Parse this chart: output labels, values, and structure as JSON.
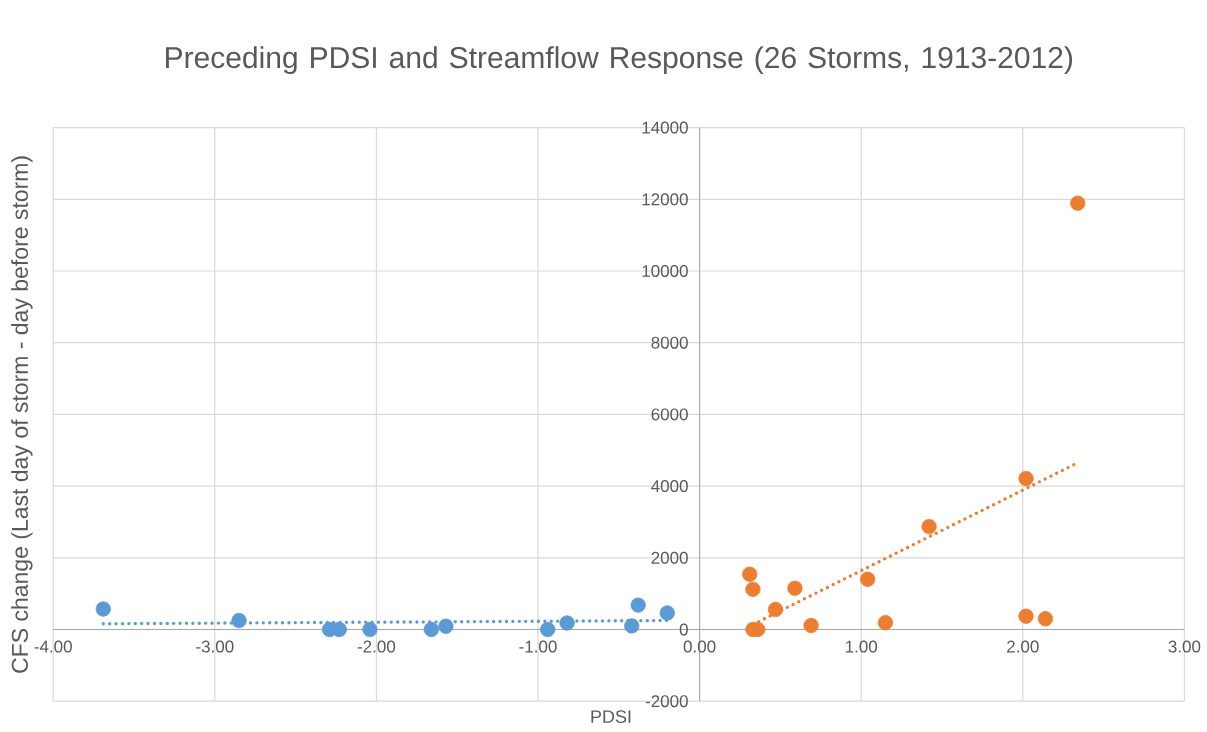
{
  "chart_data": {
    "type": "scatter",
    "title": "Preceding PDSI and Streamflow Response (26 Storms, 1913-2012)",
    "xlabel": "PDSI",
    "ylabel": "CFS change (Last day of storm - day before storm)",
    "xlim": [
      -4,
      3
    ],
    "ylim": [
      -2000,
      14000
    ],
    "xticks": [
      {
        "value": -4,
        "label": "-4.00"
      },
      {
        "value": -3,
        "label": "-3.00"
      },
      {
        "value": -2,
        "label": "-2.00"
      },
      {
        "value": -1,
        "label": "-1.00"
      },
      {
        "value": 0,
        "label": "0.00"
      },
      {
        "value": 1,
        "label": "1.00"
      },
      {
        "value": 2,
        "label": "2.00"
      },
      {
        "value": 3,
        "label": "3.00"
      }
    ],
    "yticks": [
      -2000,
      0,
      2000,
      4000,
      6000,
      8000,
      10000,
      12000,
      14000
    ],
    "grid": true,
    "marker": "circle",
    "series": [
      {
        "color": "#5b9bd5",
        "x": [
          -3.69,
          -2.85,
          -2.29,
          -2.23,
          -2.04,
          -1.66,
          -1.57,
          -0.94,
          -0.82,
          -0.42,
          -0.38,
          -0.2
        ],
        "values": [
          570,
          250,
          0,
          0,
          0,
          0,
          90,
          0,
          180,
          100,
          680,
          460
        ]
      },
      {
        "color": "#ed7d31",
        "x": [
          0.31,
          0.33,
          0.33,
          0.36,
          0.47,
          0.59,
          0.69,
          1.04,
          1.15,
          1.42,
          2.02,
          2.02,
          2.14,
          2.34
        ],
        "values": [
          1540,
          1120,
          0,
          0,
          560,
          1150,
          110,
          1400,
          190,
          2870,
          4210,
          370,
          300,
          11890
        ]
      },
      {
        "type": "line",
        "color": "#5b9bd5",
        "line_style": "dotted",
        "marker": "none",
        "x": [
          -3.69,
          -0.2
        ],
        "values": [
          160,
          250
        ]
      },
      {
        "type": "line",
        "color": "#ed7d31",
        "line_style": "dotted",
        "marker": "none",
        "x": [
          0.33,
          2.34
        ],
        "values": [
          140,
          4650
        ]
      }
    ]
  }
}
